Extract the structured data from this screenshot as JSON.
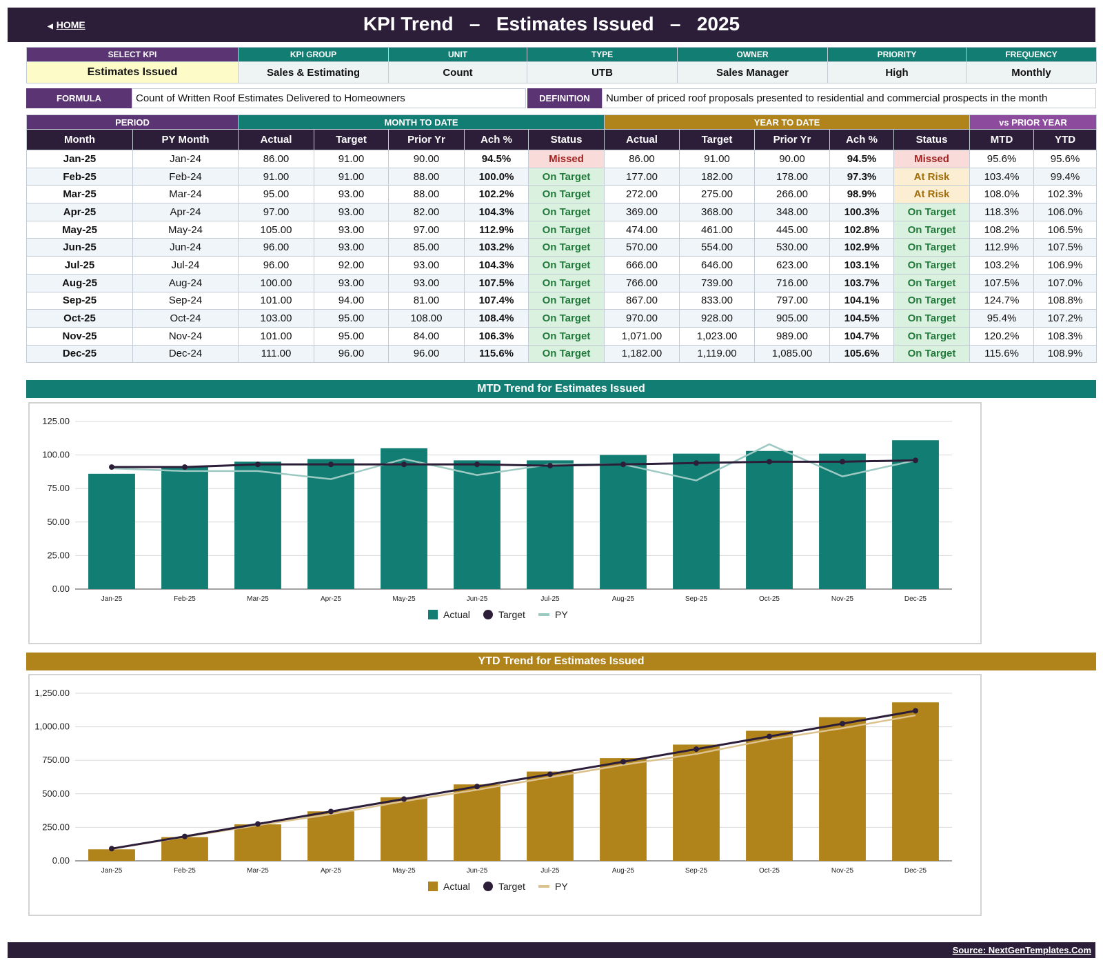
{
  "header": {
    "home_label": "HOME",
    "title": "KPI Trend   –   Estimates Issued   –   2025"
  },
  "kpi_info": {
    "headers": [
      "SELECT KPI",
      "KPI GROUP",
      "UNIT",
      "TYPE",
      "OWNER",
      "PRIORITY",
      "FREQUENCY"
    ],
    "values": [
      "Estimates Issued",
      "Sales & Estimating",
      "Count",
      "UTB",
      "Sales Manager",
      "High",
      "Monthly"
    ]
  },
  "formula": {
    "label": "FORMULA",
    "text": "Count of Written Roof Estimates Delivered to Homeowners",
    "definition_label": "DEFINITION",
    "definition_text": "Number of priced roof proposals presented to residential and commercial prospects in the month"
  },
  "table": {
    "groups": [
      "PERIOD",
      "MONTH TO DATE",
      "YEAR TO DATE",
      "vs PRIOR YEAR"
    ],
    "columns": [
      "Month",
      "PY Month",
      "Actual",
      "Target",
      "Prior Yr",
      "Ach %",
      "Status",
      "Actual",
      "Target",
      "Prior Yr",
      "Ach %",
      "Status",
      "MTD",
      "YTD"
    ],
    "rows": [
      [
        "Jan-25",
        "Jan-24",
        "86.00",
        "91.00",
        "90.00",
        "94.5%",
        "Missed",
        "86.00",
        "91.00",
        "90.00",
        "94.5%",
        "Missed",
        "95.6%",
        "95.6%"
      ],
      [
        "Feb-25",
        "Feb-24",
        "91.00",
        "91.00",
        "88.00",
        "100.0%",
        "On Target",
        "177.00",
        "182.00",
        "178.00",
        "97.3%",
        "At Risk",
        "103.4%",
        "99.4%"
      ],
      [
        "Mar-25",
        "Mar-24",
        "95.00",
        "93.00",
        "88.00",
        "102.2%",
        "On Target",
        "272.00",
        "275.00",
        "266.00",
        "98.9%",
        "At Risk",
        "108.0%",
        "102.3%"
      ],
      [
        "Apr-25",
        "Apr-24",
        "97.00",
        "93.00",
        "82.00",
        "104.3%",
        "On Target",
        "369.00",
        "368.00",
        "348.00",
        "100.3%",
        "On Target",
        "118.3%",
        "106.0%"
      ],
      [
        "May-25",
        "May-24",
        "105.00",
        "93.00",
        "97.00",
        "112.9%",
        "On Target",
        "474.00",
        "461.00",
        "445.00",
        "102.8%",
        "On Target",
        "108.2%",
        "106.5%"
      ],
      [
        "Jun-25",
        "Jun-24",
        "96.00",
        "93.00",
        "85.00",
        "103.2%",
        "On Target",
        "570.00",
        "554.00",
        "530.00",
        "102.9%",
        "On Target",
        "112.9%",
        "107.5%"
      ],
      [
        "Jul-25",
        "Jul-24",
        "96.00",
        "92.00",
        "93.00",
        "104.3%",
        "On Target",
        "666.00",
        "646.00",
        "623.00",
        "103.1%",
        "On Target",
        "103.2%",
        "106.9%"
      ],
      [
        "Aug-25",
        "Aug-24",
        "100.00",
        "93.00",
        "93.00",
        "107.5%",
        "On Target",
        "766.00",
        "739.00",
        "716.00",
        "103.7%",
        "On Target",
        "107.5%",
        "107.0%"
      ],
      [
        "Sep-25",
        "Sep-24",
        "101.00",
        "94.00",
        "81.00",
        "107.4%",
        "On Target",
        "867.00",
        "833.00",
        "797.00",
        "104.1%",
        "On Target",
        "124.7%",
        "108.8%"
      ],
      [
        "Oct-25",
        "Oct-24",
        "103.00",
        "95.00",
        "108.00",
        "108.4%",
        "On Target",
        "970.00",
        "928.00",
        "905.00",
        "104.5%",
        "On Target",
        "95.4%",
        "107.2%"
      ],
      [
        "Nov-25",
        "Nov-24",
        "101.00",
        "95.00",
        "84.00",
        "106.3%",
        "On Target",
        "1,071.00",
        "1,023.00",
        "989.00",
        "104.7%",
        "On Target",
        "120.2%",
        "108.3%"
      ],
      [
        "Dec-25",
        "Dec-24",
        "111.00",
        "96.00",
        "96.00",
        "115.6%",
        "On Target",
        "1,182.00",
        "1,119.00",
        "1,085.00",
        "105.6%",
        "On Target",
        "115.6%",
        "108.9%"
      ]
    ]
  },
  "colors": {
    "dark": "#2c1e39",
    "purple": "#5b3473",
    "teal": "#127d73",
    "teal_light": "#9dc9c3",
    "gold": "#b1831b",
    "gold_light": "#dcc28e",
    "lilac": "#8c4b9d"
  },
  "chart_data": [
    {
      "type": "bar",
      "title": "MTD Trend for Estimates Issued",
      "categories": [
        "Jan-25",
        "Feb-25",
        "Mar-25",
        "Apr-25",
        "May-25",
        "Jun-25",
        "Jul-25",
        "Aug-25",
        "Sep-25",
        "Oct-25",
        "Nov-25",
        "Dec-25"
      ],
      "series": [
        {
          "name": "Actual",
          "type": "bar",
          "values": [
            86,
            91,
            95,
            97,
            105,
            96,
            96,
            100,
            101,
            103,
            101,
            111
          ]
        },
        {
          "name": "Target",
          "type": "line-markers",
          "values": [
            91,
            91,
            93,
            93,
            93,
            93,
            92,
            93,
            94,
            95,
            95,
            96
          ]
        },
        {
          "name": "PY",
          "type": "line",
          "values": [
            90,
            88,
            88,
            82,
            97,
            85,
            93,
            93,
            81,
            108,
            84,
            96
          ]
        }
      ],
      "yticks": [
        "0.00",
        "25.00",
        "50.00",
        "75.00",
        "100.00",
        "125.00"
      ],
      "ylim": [
        0,
        125
      ],
      "legend": "bottom-center",
      "grid": true
    },
    {
      "type": "bar",
      "title": "YTD Trend for Estimates Issued",
      "categories": [
        "Jan-25",
        "Feb-25",
        "Mar-25",
        "Apr-25",
        "May-25",
        "Jun-25",
        "Jul-25",
        "Aug-25",
        "Sep-25",
        "Oct-25",
        "Nov-25",
        "Dec-25"
      ],
      "series": [
        {
          "name": "Actual",
          "type": "bar",
          "values": [
            86,
            177,
            272,
            369,
            474,
            570,
            666,
            766,
            867,
            970,
            1071,
            1182
          ]
        },
        {
          "name": "Target",
          "type": "line-markers",
          "values": [
            91,
            182,
            275,
            368,
            461,
            554,
            646,
            739,
            833,
            928,
            1023,
            1119
          ]
        },
        {
          "name": "PY",
          "type": "line",
          "values": [
            90,
            178,
            266,
            348,
            445,
            530,
            623,
            716,
            797,
            905,
            989,
            1085
          ]
        }
      ],
      "yticks": [
        "0.00",
        "250.00",
        "500.00",
        "750.00",
        "1,000.00",
        "1,250.00"
      ],
      "ylim": [
        0,
        1250
      ],
      "legend": "bottom-center",
      "grid": true
    }
  ],
  "footer": {
    "source": "Source: NextGenTemplates.Com"
  }
}
